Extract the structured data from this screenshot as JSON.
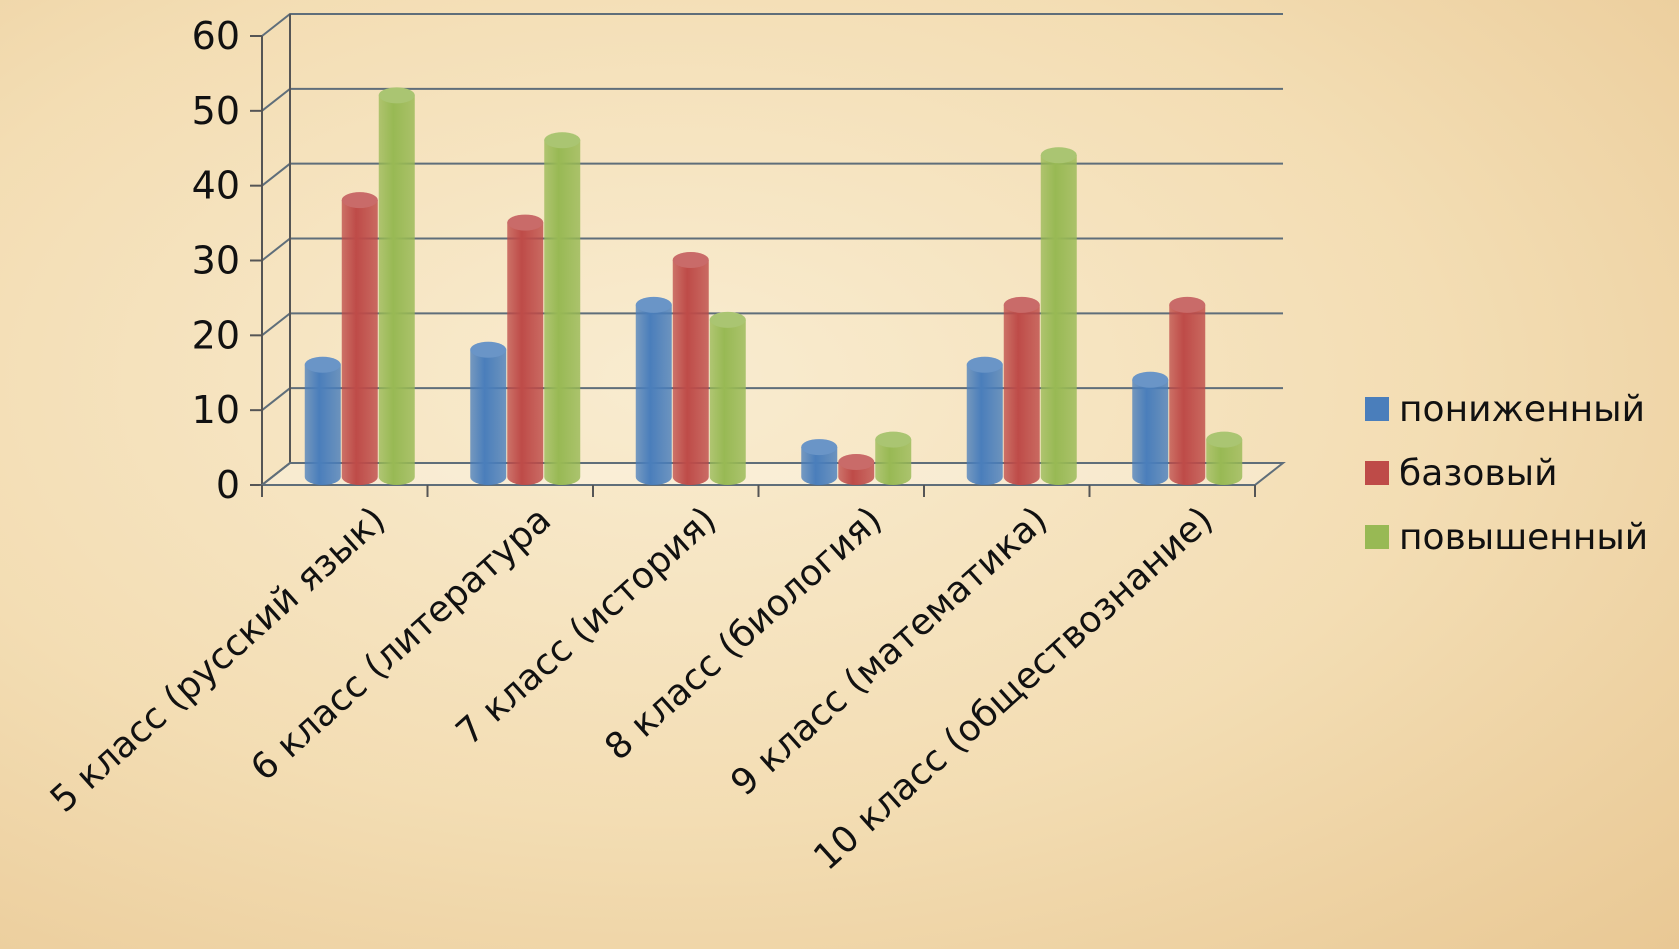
{
  "chart_data": {
    "type": "bar",
    "categories": [
      "5 класс (русский язык)",
      "6 класс (литература",
      "7 класс (история)",
      "8 класс (биология)",
      "9 класс (математика)",
      "10 класс (обществознание)"
    ],
    "series": [
      {
        "name": "пониженный",
        "color": "#4a7ebb",
        "values": [
          15,
          17,
          23,
          4,
          15,
          13
        ]
      },
      {
        "name": "базовый",
        "color": "#be4b48",
        "values": [
          37,
          34,
          29,
          2,
          23,
          23
        ]
      },
      {
        "name": "повышенный",
        "color": "#98b954",
        "values": [
          51,
          45,
          21,
          5,
          43,
          5
        ]
      }
    ],
    "ylim": [
      0,
      60
    ],
    "yticks": [
      "0",
      "10",
      "20",
      "30",
      "40",
      "50",
      "60"
    ],
    "grid": true,
    "legend_position": "right"
  }
}
